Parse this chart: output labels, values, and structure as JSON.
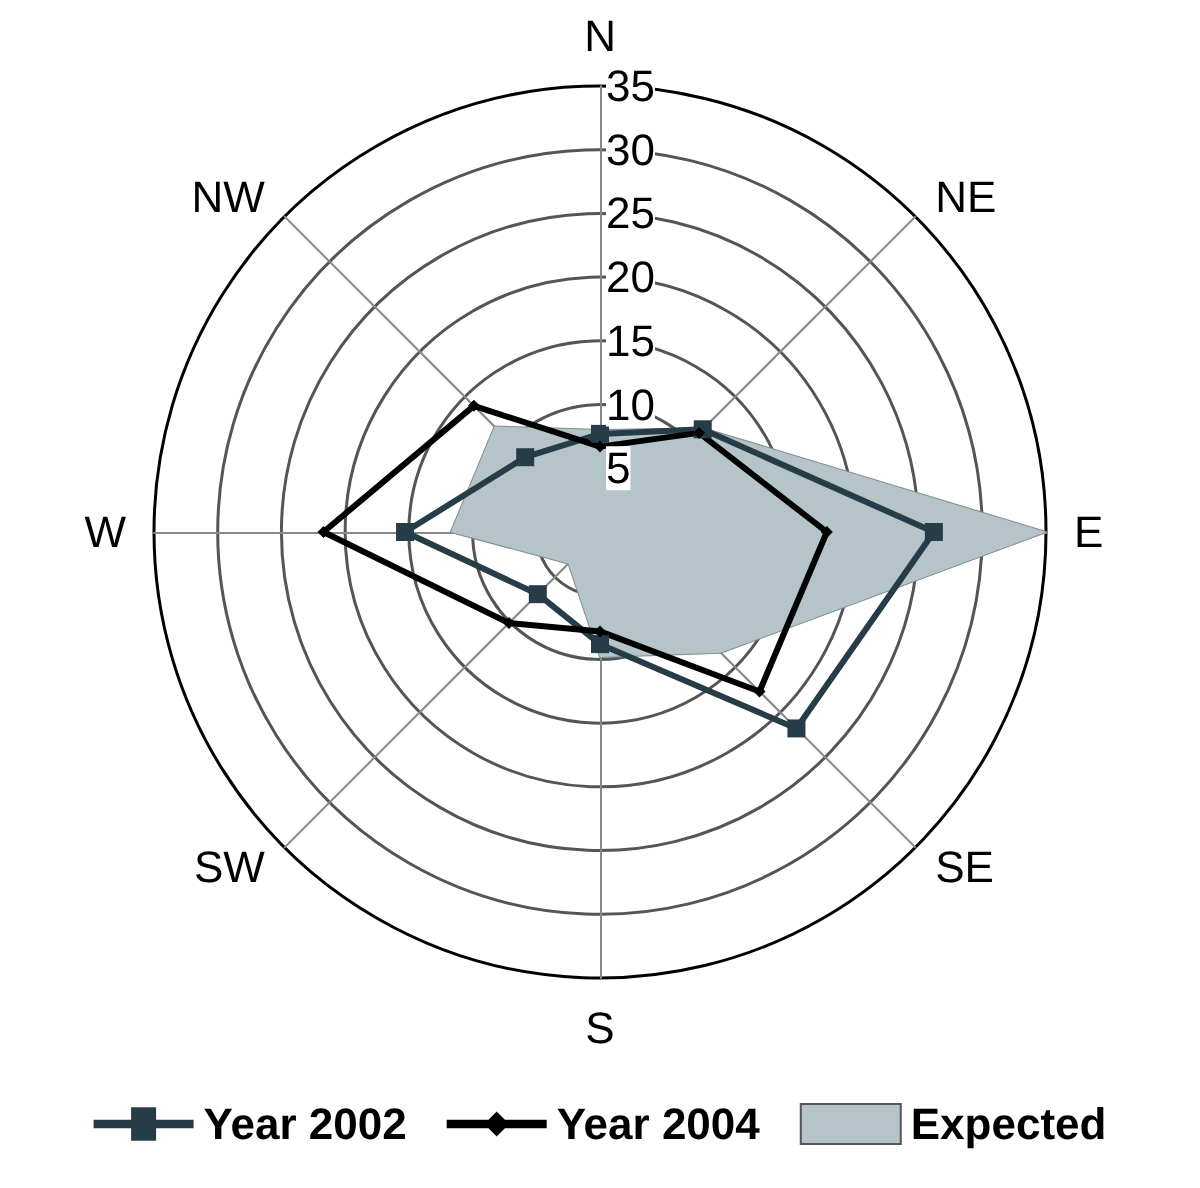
{
  "chart_data": {
    "type": "radar",
    "categories": [
      "N",
      "NE",
      "E",
      "SE",
      "S",
      "SW",
      "W",
      "NW"
    ],
    "ylim": [
      0,
      35
    ],
    "yticks": [
      5,
      10,
      15,
      20,
      25,
      30,
      35
    ],
    "grid": true,
    "legend": "bottom",
    "series": [
      {
        "name": "Year 2002",
        "color": "#263c47",
        "marker": "square",
        "values": [
          7.7,
          11.4,
          26.2,
          21.8,
          8.8,
          6.9,
          15.3,
          8.3
        ]
      },
      {
        "name": "Year 2004",
        "color": "#000000",
        "marker": "diamond",
        "values": [
          6.7,
          11,
          17.8,
          17.7,
          7.8,
          10.1,
          21.7,
          14
        ]
      },
      {
        "name": "Expected",
        "type": "area",
        "color": "#b4c4c8",
        "values": [
          8,
          11.5,
          35,
          13.4,
          9.8,
          3.5,
          11.7,
          11.7
        ]
      }
    ]
  }
}
